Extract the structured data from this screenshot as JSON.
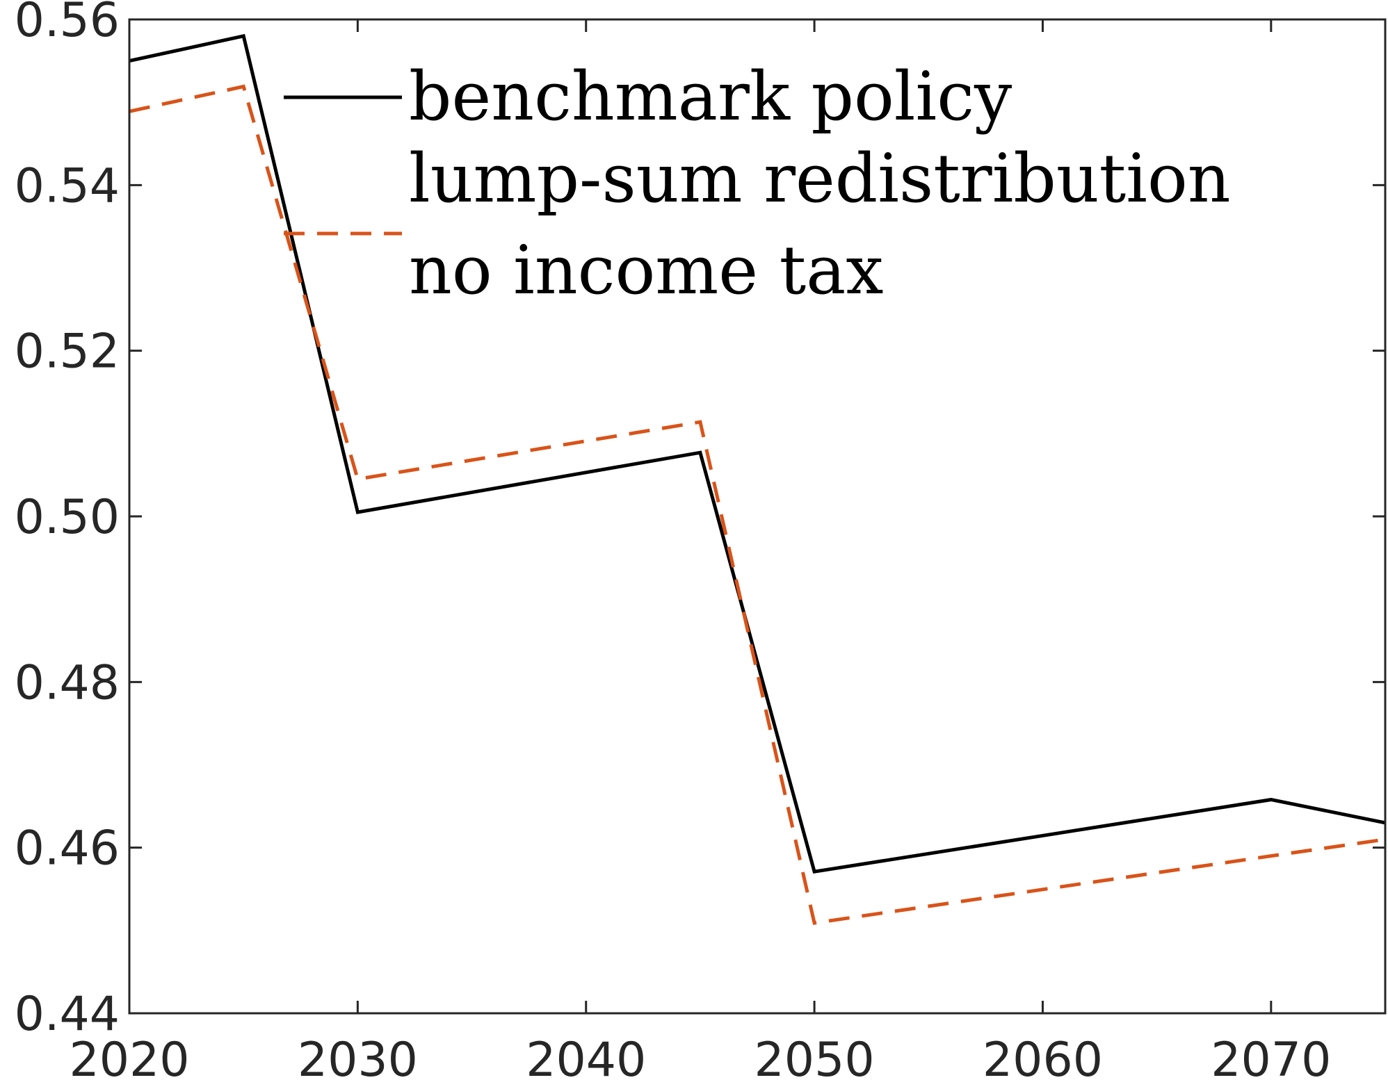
{
  "chart_data": {
    "type": "line",
    "title": "",
    "xlabel": "",
    "ylabel": "",
    "xlim": [
      2020,
      2075
    ],
    "ylim": [
      0.44,
      0.56
    ],
    "grid": false,
    "legend_position": "top-right",
    "xticks": [
      "2020",
      "2030",
      "2040",
      "2050",
      "2060",
      "2070"
    ],
    "yticks": [
      "0.44",
      "0.46",
      "0.48",
      "0.50",
      "0.52",
      "0.54",
      "0.56"
    ],
    "series": [
      {
        "name": "benchmark policy",
        "color": "#000000",
        "style": "solid",
        "x": [
          2020,
          2025,
          2030,
          2045,
          2050,
          2070,
          2075
        ],
        "y": [
          0.555,
          0.558,
          0.5005,
          0.5077,
          0.4571,
          0.4658,
          0.463
        ]
      },
      {
        "name": "lump-sum redistribution",
        "color": "#000000",
        "style": "solid",
        "x": [],
        "y": []
      },
      {
        "name": "no income tax",
        "color": "#D95319",
        "style": "dashed",
        "x": [
          2020,
          2025,
          2030,
          2045,
          2050,
          2070,
          2075
        ],
        "y": [
          0.5489,
          0.5519,
          0.5045,
          0.5114,
          0.4509,
          0.459,
          0.461
        ]
      }
    ],
    "legend": [
      {
        "label": "benchmark policy",
        "line": "solid",
        "color": "#000000"
      },
      {
        "label": "lump-sum redistribution",
        "line": "none",
        "color": "#000000"
      },
      {
        "label": "no income tax",
        "line": "dashed",
        "color": "#D95319"
      }
    ]
  }
}
